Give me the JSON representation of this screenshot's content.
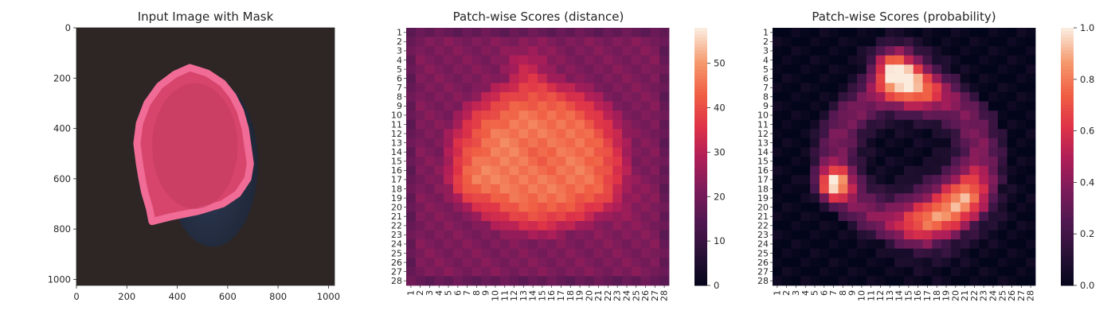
{
  "chart_data": [
    {
      "type": "image",
      "title": "Input Image with Mask",
      "xlim": [
        0,
        1024
      ],
      "ylim": [
        1024,
        0
      ],
      "xticks": [
        0,
        200,
        400,
        600,
        800,
        1000
      ],
      "yticks": [
        0,
        200,
        400,
        600,
        800,
        1000
      ],
      "colors": {
        "background": "#2d2625",
        "fruit": "#2f3b55",
        "mask": "#d8456c",
        "rim": "#f06b95"
      },
      "mask_outline": [
        [
          450,
          158
        ],
        [
          520,
          180
        ],
        [
          580,
          220
        ],
        [
          620,
          270
        ],
        [
          650,
          330
        ],
        [
          670,
          400
        ],
        [
          680,
          470
        ],
        [
          690,
          540
        ],
        [
          680,
          600
        ],
        [
          640,
          660
        ],
        [
          580,
          700
        ],
        [
          480,
          730
        ],
        [
          380,
          750
        ],
        [
          300,
          770
        ],
        [
          290,
          720
        ],
        [
          270,
          650
        ],
        [
          260,
          600
        ],
        [
          250,
          540
        ],
        [
          240,
          460
        ],
        [
          250,
          380
        ],
        [
          280,
          300
        ],
        [
          330,
          230
        ],
        [
          390,
          185
        ]
      ]
    },
    {
      "type": "heatmap",
      "title": "Patch-wise Scores (distance)",
      "rows": [
        "1",
        "2",
        "3",
        "4",
        "5",
        "6",
        "7",
        "8",
        "9",
        "10",
        "11",
        "12",
        "13",
        "14",
        "15",
        "16",
        "17",
        "18",
        "19",
        "20",
        "21",
        "22",
        "23",
        "24",
        "25",
        "26",
        "27",
        "28"
      ],
      "columns": [
        "1",
        "2",
        "3",
        "4",
        "5",
        "6",
        "7",
        "8",
        "9",
        "10",
        "11",
        "12",
        "13",
        "14",
        "15",
        "16",
        "17",
        "18",
        "19",
        "20",
        "21",
        "22",
        "23",
        "24",
        "25",
        "26",
        "27",
        "28"
      ],
      "vmin": 0,
      "vmax": 58,
      "colorbar_ticks": [
        0,
        10,
        20,
        30,
        40,
        50
      ],
      "colormap": "rocket",
      "blobs": {
        "base": 22,
        "amplitude": 28,
        "center": [
          14.5,
          14.5
        ],
        "spread": [
          7.5,
          8.5
        ],
        "hotspots": [
          {
            "row": 5,
            "col": 13.5,
            "add": 10,
            "spread": 1.5
          },
          {
            "row": 17.5,
            "col": 7,
            "add": 8,
            "spread": 1.5
          },
          {
            "row": 19,
            "col": 22.5,
            "add": 6,
            "spread": 2
          },
          {
            "row": 14.5,
            "col": 15,
            "add": -6,
            "spread": 2.5
          }
        ]
      }
    },
    {
      "type": "heatmap",
      "title": "Patch-wise Scores (probability)",
      "rows": [
        "1",
        "2",
        "3",
        "4",
        "5",
        "6",
        "7",
        "8",
        "9",
        "10",
        "11",
        "12",
        "13",
        "14",
        "15",
        "16",
        "17",
        "18",
        "19",
        "20",
        "21",
        "22",
        "23",
        "24",
        "25",
        "26",
        "27",
        "28"
      ],
      "columns": [
        "1",
        "2",
        "3",
        "4",
        "5",
        "6",
        "7",
        "8",
        "9",
        "10",
        "11",
        "12",
        "13",
        "14",
        "15",
        "16",
        "17",
        "18",
        "19",
        "20",
        "21",
        "22",
        "23",
        "24",
        "25",
        "26",
        "27",
        "28"
      ],
      "vmin": 0,
      "vmax": 1,
      "colorbar_ticks": [
        "0.0",
        "0.2",
        "0.4",
        "0.6",
        "0.8",
        "1.0"
      ],
      "colormap": "rocket",
      "blobs": {
        "base": 0.02,
        "ring": {
          "center": [
            14.5,
            15
          ],
          "radius": [
            8.5,
            9
          ],
          "width": 2.2,
          "amp": 0.35
        },
        "hotspots": [
          {
            "row": 5,
            "col": 13.5,
            "add": 0.85,
            "spread": 1.6
          },
          {
            "row": 7,
            "col": 16,
            "add": 0.45,
            "spread": 2
          },
          {
            "row": 17.5,
            "col": 7,
            "add": 0.75,
            "spread": 1.2
          },
          {
            "row": 19,
            "col": 21,
            "add": 0.45,
            "spread": 2.2
          },
          {
            "row": 21.5,
            "col": 17,
            "add": 0.4,
            "spread": 2.5
          }
        ]
      }
    }
  ]
}
